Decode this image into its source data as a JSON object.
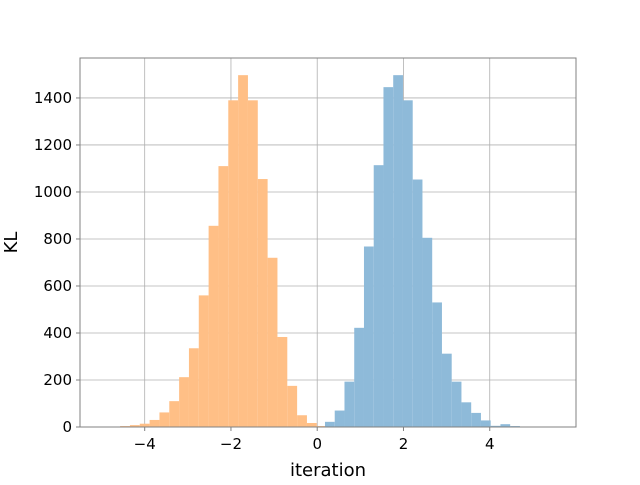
{
  "chart_data": {
    "type": "bar",
    "subtype": "overlapping-histogram",
    "title": "",
    "xlabel": "iteration",
    "ylabel": "KL",
    "xlim": [
      -5.5,
      6.0
    ],
    "ylim": [
      0,
      1570
    ],
    "xticks": [
      -4,
      -2,
      0,
      2,
      4
    ],
    "yticks": [
      0,
      200,
      400,
      600,
      800,
      1000,
      1200,
      1400
    ],
    "grid": true,
    "legend": "none",
    "series": [
      {
        "color": "#ffbf86",
        "bin_width": 0.228,
        "bins": [
          {
            "x0": -4.57,
            "count": 4
          },
          {
            "x0": -4.342,
            "count": 8
          },
          {
            "x0": -4.114,
            "count": 14
          },
          {
            "x0": -3.886,
            "count": 30
          },
          {
            "x0": -3.658,
            "count": 62
          },
          {
            "x0": -3.43,
            "count": 110
          },
          {
            "x0": -3.202,
            "count": 212
          },
          {
            "x0": -2.974,
            "count": 335
          },
          {
            "x0": -2.746,
            "count": 560
          },
          {
            "x0": -2.518,
            "count": 856
          },
          {
            "x0": -2.29,
            "count": 1110
          },
          {
            "x0": -2.062,
            "count": 1390
          },
          {
            "x0": -1.834,
            "count": 1497
          },
          {
            "x0": -1.606,
            "count": 1390
          },
          {
            "x0": -1.378,
            "count": 1055
          },
          {
            "x0": -1.15,
            "count": 720
          },
          {
            "x0": -0.922,
            "count": 383
          },
          {
            "x0": -0.694,
            "count": 175
          },
          {
            "x0": -0.466,
            "count": 50
          },
          {
            "x0": -0.238,
            "count": 17
          },
          {
            "x0": -0.01,
            "count": 4
          }
        ]
      },
      {
        "color": "#8ebad9",
        "bin_width": 0.226,
        "bins": [
          {
            "x0": 0.18,
            "count": 22
          },
          {
            "x0": 0.406,
            "count": 70
          },
          {
            "x0": 0.632,
            "count": 193
          },
          {
            "x0": 0.858,
            "count": 422
          },
          {
            "x0": 1.084,
            "count": 768
          },
          {
            "x0": 1.31,
            "count": 1114
          },
          {
            "x0": 1.536,
            "count": 1446
          },
          {
            "x0": 1.762,
            "count": 1497
          },
          {
            "x0": 1.988,
            "count": 1390
          },
          {
            "x0": 2.214,
            "count": 1053
          },
          {
            "x0": 2.44,
            "count": 805
          },
          {
            "x0": 2.666,
            "count": 530
          },
          {
            "x0": 2.892,
            "count": 312
          },
          {
            "x0": 3.118,
            "count": 193
          },
          {
            "x0": 3.344,
            "count": 105
          },
          {
            "x0": 3.57,
            "count": 60
          },
          {
            "x0": 3.796,
            "count": 28
          },
          {
            "x0": 4.022,
            "count": 5
          },
          {
            "x0": 4.248,
            "count": 12
          },
          {
            "x0": 4.474,
            "count": 4
          }
        ]
      }
    ]
  }
}
